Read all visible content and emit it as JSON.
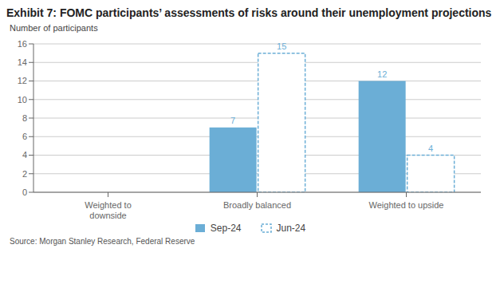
{
  "chart_data": {
    "type": "bar",
    "title": "Exhibit 7: FOMC participants’ assessments of risks around their unemployment projections",
    "y_label": "Number of participants",
    "categories": [
      "Weighted to\ndownside",
      "Broadly balanced",
      "Weighted to upside"
    ],
    "series": [
      {
        "name": "Sep-24",
        "color": "#6baed6",
        "line_style": "solid",
        "values": [
          0,
          7,
          12
        ]
      },
      {
        "name": "Jun-24",
        "color": "#6baed6",
        "line_style": "dashed",
        "values": [
          0,
          15,
          4
        ]
      }
    ],
    "ylim": [
      0,
      16
    ],
    "yticks": [
      0,
      2,
      4,
      6,
      8,
      10,
      12,
      14,
      16
    ],
    "grid": true,
    "legend": "bottom",
    "data_labels": true,
    "annotations": [
      "Source: Morgan Stanley Research, Federal Reserve"
    ]
  }
}
